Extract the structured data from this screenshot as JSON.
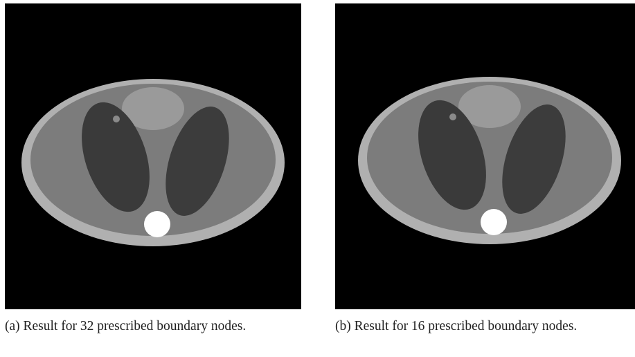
{
  "figures": [
    {
      "caption": "(a) Result for 32 prescribed boundary nodes."
    },
    {
      "caption": "(b) Result for 16 prescribed boundary nodes."
    }
  ]
}
